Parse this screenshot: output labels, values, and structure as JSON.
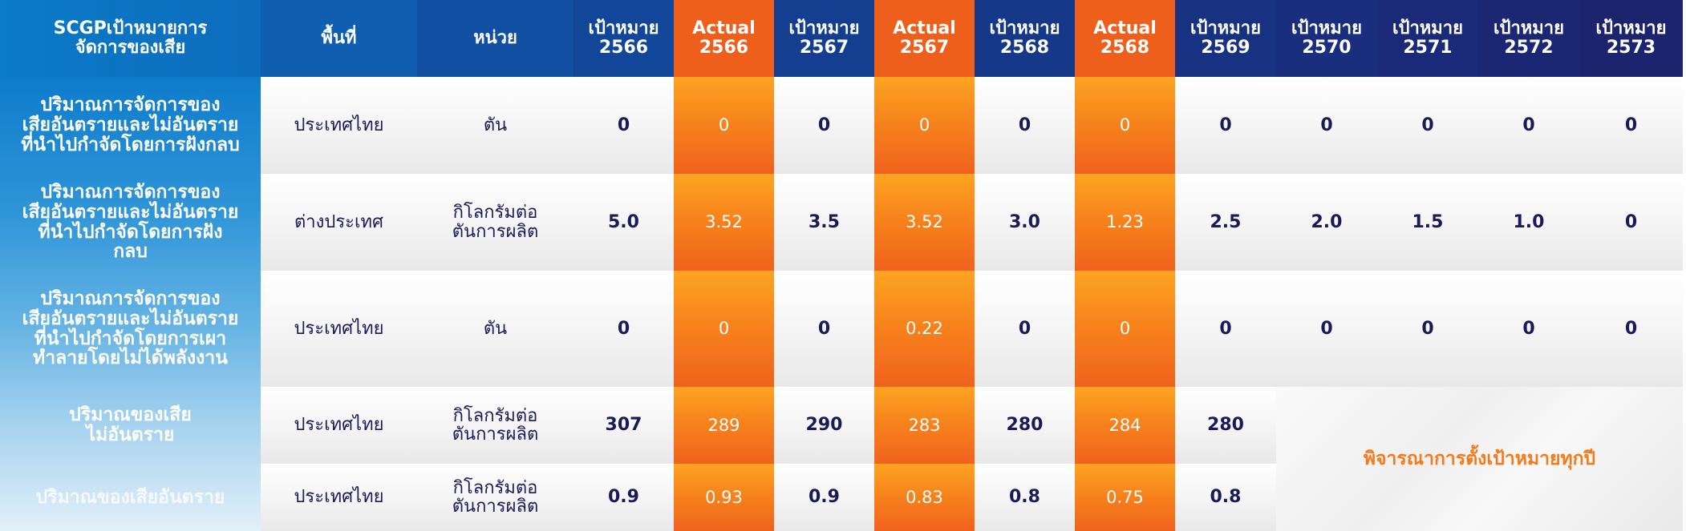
{
  "header": {
    "col_topic": [
      "SCGPเป้าหมายการ",
      "จัดการของเสีย"
    ],
    "col_area": "พื้นที่",
    "col_unit": "หน่วย",
    "years": [
      {
        "type": "target",
        "l1": "เป้าหมาย",
        "l2": "2566"
      },
      {
        "type": "actual",
        "l1": "Actual",
        "l2": "2566"
      },
      {
        "type": "target",
        "l1": "เป้าหมาย",
        "l2": "2567"
      },
      {
        "type": "actual",
        "l1": "Actual",
        "l2": "2567"
      },
      {
        "type": "target",
        "l1": "เป้าหมาย",
        "l2": "2568"
      },
      {
        "type": "actual",
        "l1": "Actual",
        "l2": "2568"
      },
      {
        "type": "target",
        "l1": "เป้าหมาย",
        "l2": "2569"
      },
      {
        "type": "target",
        "l1": "เป้าหมาย",
        "l2": "2570"
      },
      {
        "type": "target",
        "l1": "เป้าหมาย",
        "l2": "2571"
      },
      {
        "type": "target",
        "l1": "เป้าหมาย",
        "l2": "2572"
      },
      {
        "type": "target",
        "l1": "เป้าหมาย",
        "l2": "2573"
      }
    ]
  },
  "rows": [
    {
      "label": "ปริมาณการจัดการของ\nเสียอันตรายและไม่อันตราย\nที่นำไปกำจัดโดยการฝังกลบ",
      "area": "ประเทศไทย",
      "unit": "ตัน",
      "values": [
        "0",
        "0",
        "0",
        "0",
        "0",
        "0",
        "0",
        "0",
        "0",
        "0",
        "0"
      ]
    },
    {
      "label": "ปริมาณการจัดการของ\nเสียอันตรายและไม่อันตราย\nที่นำไปกำจัดโดยการฝัง\nกลบ",
      "area": "ต่างประเทศ",
      "unit": "กิโลกรัมต่อ\nตันการผลิต",
      "values": [
        "5.0",
        "3.52",
        "3.5",
        "3.52",
        "3.0",
        "1.23",
        "2.5",
        "2.0",
        "1.5",
        "1.0",
        "0"
      ]
    },
    {
      "label": "ปริมาณการจัดการของ\nเสียอันตรายและไม่อันตราย\nที่นำไปกำจัดโดยการเผา\nทำลายโดยไม่ได้พลังงาน",
      "area": "ประเทศไทย",
      "unit": "ตัน",
      "values": [
        "0",
        "0",
        "0",
        "0.22",
        "0",
        "0",
        "0",
        "0",
        "0",
        "0",
        "0"
      ]
    },
    {
      "label": "ปริมาณของเสีย\nไม่อันตราย",
      "area": "ประเทศไทย",
      "unit": "กิโลกรัมต่อ\nตันการผลิต",
      "values": [
        "307",
        "289",
        "290",
        "283",
        "280",
        "284",
        "280"
      ]
    },
    {
      "label": "ปริมาณของเสียอันตราย",
      "area": "ประเทศไทย",
      "unit": "กิโลกรัมต่อ\nตันการผลิต",
      "values": [
        "0.9",
        "0.93",
        "0.9",
        "0.83",
        "0.8",
        "0.75",
        "0.8"
      ]
    }
  ],
  "note": "พิจารณาการตั้งเป้าหมายทุกปี",
  "colors": {
    "header_blue": "#123b8e",
    "header_actual": "#ee5f1c",
    "actual_gradient_top": "#fda421",
    "actual_gradient_bottom": "#f0621d",
    "note_text": "#f47b1c",
    "value_text": "#1b1a58"
  }
}
